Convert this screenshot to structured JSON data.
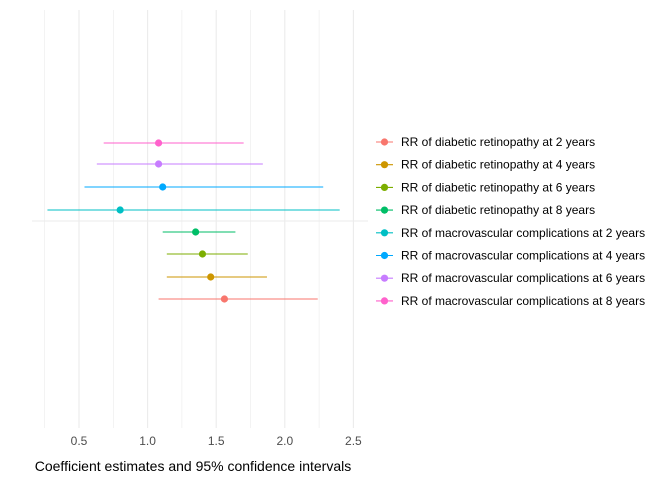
{
  "chart_data": {
    "type": "forest",
    "title": "",
    "xlabel": "Coefficient estimates and 95% confidence intervals",
    "ylabel": "",
    "xlim": [
      0.23,
      2.67
    ],
    "xticks": [
      "0.5",
      "1.0",
      "1.5",
      "2.0",
      "2.5"
    ],
    "xtick_values": [
      0.5,
      1.0,
      1.5,
      2.0,
      2.5
    ],
    "grid": true,
    "legend_position": "right",
    "series": [
      {
        "name": "RR of diabetic retinopathy at 2 years",
        "color": "#F8766D",
        "estimate": 1.56,
        "lower": 1.08,
        "upper": 2.24
      },
      {
        "name": "RR of diabetic retinopathy at 4 years",
        "color": "#CD9600",
        "estimate": 1.46,
        "lower": 1.14,
        "upper": 1.87
      },
      {
        "name": "RR of diabetic retinopathy at 6 years",
        "color": "#7CAE00",
        "estimate": 1.4,
        "lower": 1.14,
        "upper": 1.73
      },
      {
        "name": "RR of diabetic retinopathy at 8 years",
        "color": "#00BE67",
        "estimate": 1.35,
        "lower": 1.11,
        "upper": 1.64
      },
      {
        "name": "RR of macrovascular complications at 2 years",
        "color": "#00BFC4",
        "estimate": 0.8,
        "lower": 0.27,
        "upper": 2.4
      },
      {
        "name": "RR of macrovascular complications at 4 years",
        "color": "#00A9FF",
        "estimate": 1.11,
        "lower": 0.54,
        "upper": 2.28
      },
      {
        "name": "RR of macrovascular complications at 6 years",
        "color": "#C77CFF",
        "estimate": 1.08,
        "lower": 0.63,
        "upper": 1.84
      },
      {
        "name": "RR of macrovascular complications at 8 years",
        "color": "#FF61CC",
        "estimate": 1.08,
        "lower": 0.68,
        "upper": 1.7
      }
    ]
  }
}
